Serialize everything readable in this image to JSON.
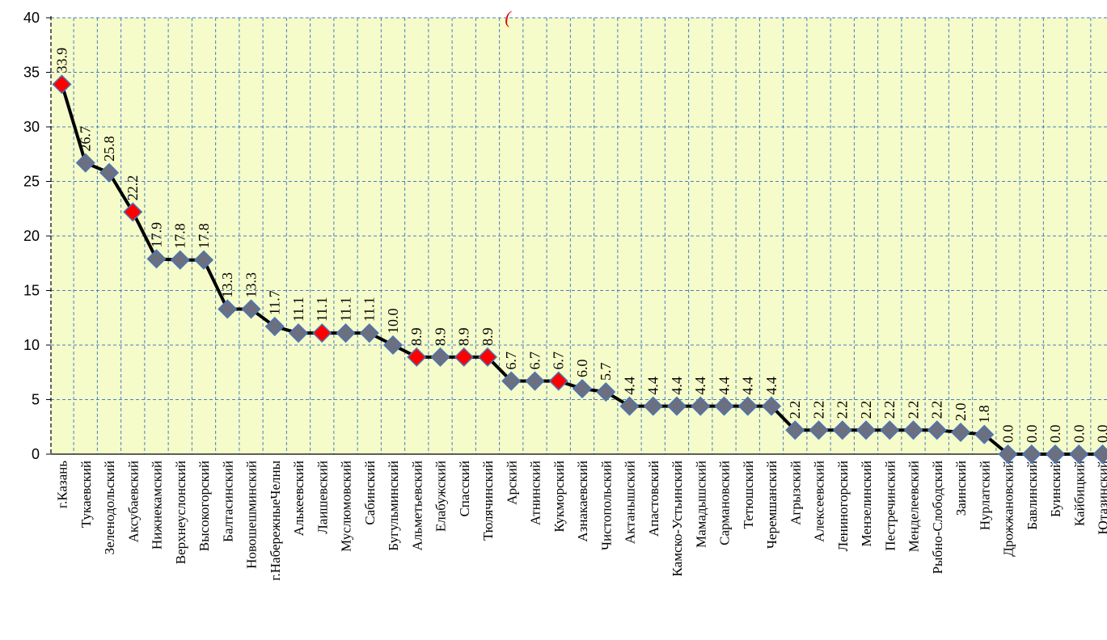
{
  "chart_data": {
    "type": "line",
    "title": "(",
    "xlabel": "",
    "ylabel": "",
    "ylim": [
      0,
      40
    ],
    "yticks": [
      "0",
      "5",
      "10",
      "15",
      "20",
      "25",
      "30",
      "35",
      "40"
    ],
    "grid": true,
    "legend": "none",
    "colors": {
      "plot_background": "#f5fbc9",
      "grid": "#4a7fc0",
      "line": "#000000",
      "marker_default": "#6b6f80",
      "marker_highlight": "#ff0000",
      "marker_edge": "#4a76b8",
      "title": "#e00000"
    },
    "categories": [
      "г.Казань",
      "Тукаевский",
      "Зеленодольский",
      "Аксубаевский",
      "Нижнекамский",
      "Верхнеуслонский",
      "Высокогорский",
      "Балтасинский",
      "Новошешминский",
      "г.НабережныеЧелны",
      "Алькеевский",
      "Лаишевский",
      "Муслюмовский",
      "Сабинский",
      "Бугульминский",
      "Альметьевский",
      "Елабужский",
      "Спасский",
      "Тюлячинский",
      "Арский",
      "Атнинский",
      "Кукморский",
      "Азнакаевский",
      "Чистопольский",
      "Актанышский",
      "Апастовский",
      "Камско-Устьинский",
      "Мамадышский",
      "Сармановский",
      "Тетюшский",
      "Черемшанский",
      "Агрызский",
      "Алексеевский",
      "Лениногорский",
      "Мензелинский",
      "Пестречинский",
      "Менделеевский",
      "Рыбно-Слободский",
      "Заинский",
      "Нурлатский",
      "Дрожжановский",
      "Бавлинский",
      "Буинский",
      "Кайбицкий",
      "Ютазинский"
    ],
    "values": [
      33.9,
      26.7,
      25.8,
      22.2,
      17.9,
      17.8,
      17.8,
      13.3,
      13.3,
      11.7,
      11.1,
      11.1,
      11.1,
      11.1,
      10.0,
      8.9,
      8.9,
      8.9,
      8.9,
      6.7,
      6.7,
      6.7,
      6.0,
      5.7,
      4.4,
      4.4,
      4.4,
      4.4,
      4.4,
      4.4,
      4.4,
      2.2,
      2.2,
      2.2,
      2.2,
      2.2,
      2.2,
      2.2,
      2.0,
      1.8,
      0.0,
      0.0,
      0.0,
      0.0,
      0.0
    ],
    "data_labels": [
      "33.9",
      "26.7",
      "25.8",
      "22.2",
      "17.9",
      "17.8",
      "17.8",
      "13.3",
      "13.3",
      "11.7",
      "11.1",
      "11.1",
      "11.1",
      "11.1",
      "10.0",
      "8.9",
      "8.9",
      "8.9",
      "8.9",
      "6.7",
      "6.7",
      "6.7",
      "6.0",
      "5.7",
      "4.4",
      "4.4",
      "4.4",
      "4.4",
      "4.4",
      "4.4",
      "4.4",
      "2.2",
      "2.2",
      "2.2",
      "2.2",
      "2.2",
      "2.2",
      "2.2",
      "2.0",
      "1.8",
      "0.0",
      "0.0",
      "0.0",
      "0.0",
      "0.0"
    ],
    "highlighted_categories": [
      "г.Казань",
      "Аксубаевский",
      "Лаишевский",
      "Альметьевский",
      "Спасский",
      "Тюлячинский",
      "Кукморский"
    ]
  }
}
